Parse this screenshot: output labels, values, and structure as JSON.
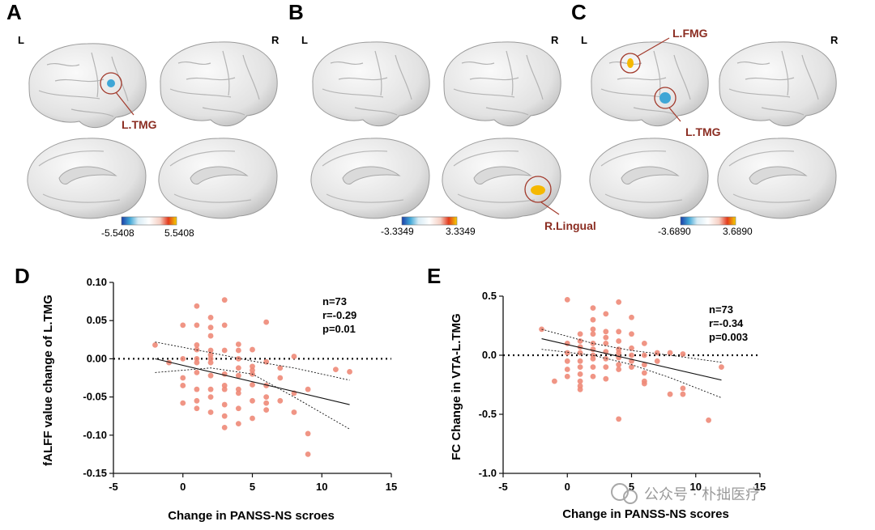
{
  "brain_panels": [
    {
      "letter": "A",
      "left": "L",
      "right": "R",
      "regions": [
        "L.TMG"
      ],
      "colorbar": {
        "min": "-5.5408",
        "max": "5.5408"
      }
    },
    {
      "letter": "B",
      "left": "L",
      "right": "R",
      "regions": [
        "R.Lingual"
      ],
      "colorbar": {
        "min": "-3.3349",
        "max": "3.3349"
      }
    },
    {
      "letter": "C",
      "left": "L",
      "right": "R",
      "regions": [
        "L.FMG",
        "L.TMG"
      ],
      "colorbar": {
        "min": "-3.6890",
        "max": "3.6890"
      }
    }
  ],
  "colors": {
    "point": "#ee8a78",
    "region_ring": "#a23a2c",
    "region_text": "#8b2d22",
    "hot": "#f5b800",
    "cool": "#3fa6d6"
  },
  "chart_data": [
    {
      "letter": "D",
      "type": "scatter",
      "xlabel": "Change in PANSS-NS scroes",
      "ylabel": "fALFF value change of L.TMG",
      "xlim": [
        -5,
        15
      ],
      "ylim": [
        -0.15,
        0.1
      ],
      "xticks": [
        "-5",
        "0",
        "5",
        "10",
        "15"
      ],
      "yticks": [
        "0.10",
        "0.05",
        "0.00",
        "-0.05",
        "-0.10",
        "-0.15"
      ],
      "stats": [
        "n=73",
        "r=-0.29",
        "p=0.01"
      ],
      "reference_y": 0,
      "fit": {
        "x": [
          -2,
          12
        ],
        "y": [
          0.0,
          -0.06
        ]
      },
      "ci_upper": {
        "x": [
          -2,
          2,
          5,
          8,
          12
        ],
        "y": [
          0.022,
          0.008,
          -0.003,
          -0.012,
          -0.028
        ]
      },
      "ci_lower": {
        "x": [
          -2,
          2,
          5,
          8,
          12
        ],
        "y": [
          -0.018,
          -0.012,
          -0.02,
          -0.05,
          -0.092
        ]
      },
      "points": [
        [
          -2,
          0.018
        ],
        [
          -1,
          -0.005
        ],
        [
          0,
          0.044
        ],
        [
          0,
          0.0
        ],
        [
          0,
          -0.025
        ],
        [
          0,
          -0.035
        ],
        [
          0,
          -0.058
        ],
        [
          1,
          0.069
        ],
        [
          1,
          0.044
        ],
        [
          1,
          0.018
        ],
        [
          1,
          0.012
        ],
        [
          1,
          0.0
        ],
        [
          1,
          -0.005
        ],
        [
          1,
          -0.018
        ],
        [
          1,
          -0.04
        ],
        [
          1,
          -0.055
        ],
        [
          1,
          -0.065
        ],
        [
          2,
          0.054
        ],
        [
          2,
          0.041
        ],
        [
          2,
          0.03
        ],
        [
          2,
          0.011
        ],
        [
          2,
          0.005
        ],
        [
          2,
          0.0
        ],
        [
          2,
          -0.005
        ],
        [
          2,
          -0.022
        ],
        [
          2,
          -0.04
        ],
        [
          2,
          -0.05
        ],
        [
          2,
          -0.07
        ],
        [
          3,
          0.077
        ],
        [
          3,
          0.044
        ],
        [
          3,
          0.011
        ],
        [
          3,
          -0.02
        ],
        [
          3,
          -0.035
        ],
        [
          3,
          -0.04
        ],
        [
          3,
          -0.06
        ],
        [
          3,
          -0.075
        ],
        [
          3,
          -0.09
        ],
        [
          4,
          0.019
        ],
        [
          4,
          0.011
        ],
        [
          4,
          0.0
        ],
        [
          4,
          -0.012
        ],
        [
          4,
          -0.022
        ],
        [
          4,
          -0.04
        ],
        [
          4,
          -0.045
        ],
        [
          4,
          -0.065
        ],
        [
          4,
          -0.085
        ],
        [
          5,
          0.012
        ],
        [
          5,
          -0.01
        ],
        [
          5,
          -0.015
        ],
        [
          5,
          -0.02
        ],
        [
          5,
          -0.034
        ],
        [
          5,
          -0.055
        ],
        [
          5,
          -0.078
        ],
        [
          6,
          0.048
        ],
        [
          6,
          -0.004
        ],
        [
          6,
          -0.035
        ],
        [
          6,
          -0.05
        ],
        [
          6,
          -0.058
        ],
        [
          6,
          -0.067
        ],
        [
          7,
          -0.012
        ],
        [
          7,
          -0.025
        ],
        [
          7,
          -0.055
        ],
        [
          8,
          0.003
        ],
        [
          8,
          -0.045
        ],
        [
          8,
          -0.07
        ],
        [
          9,
          -0.04
        ],
        [
          9,
          -0.098
        ],
        [
          9,
          -0.125
        ],
        [
          11,
          -0.014
        ],
        [
          12,
          -0.017
        ]
      ]
    },
    {
      "letter": "E",
      "type": "scatter",
      "xlabel": "Change in PANSS-NS scores",
      "ylabel": "FC Change in VTA-L.TMG",
      "xlim": [
        -5,
        15
      ],
      "ylim": [
        -1.0,
        0.5
      ],
      "xticks": [
        "-5",
        "0",
        "5",
        "10",
        "15"
      ],
      "yticks": [
        "0.5",
        "0.0",
        "-0.5",
        "-1.0"
      ],
      "stats": [
        "n=73",
        "r=-0.34",
        "p=0.003"
      ],
      "reference_y": 0,
      "fit": {
        "x": [
          -2,
          12
        ],
        "y": [
          0.14,
          -0.21
        ]
      },
      "ci_upper": {
        "x": [
          -2,
          2,
          5,
          8,
          12
        ],
        "y": [
          0.22,
          0.1,
          0.04,
          0.0,
          -0.06
        ]
      },
      "ci_lower": {
        "x": [
          -2,
          2,
          5,
          8,
          12
        ],
        "y": [
          0.05,
          0.0,
          -0.08,
          -0.19,
          -0.36
        ]
      },
      "points": [
        [
          -2,
          0.22
        ],
        [
          -1,
          -0.22
        ],
        [
          0,
          0.47
        ],
        [
          0,
          0.1
        ],
        [
          0,
          0.02
        ],
        [
          0,
          -0.05
        ],
        [
          0,
          -0.12
        ],
        [
          0,
          -0.18
        ],
        [
          1,
          0.18
        ],
        [
          1,
          0.12
        ],
        [
          1,
          0.07
        ],
        [
          1,
          0.02
        ],
        [
          1,
          -0.05
        ],
        [
          1,
          -0.1
        ],
        [
          1,
          -0.16
        ],
        [
          1,
          -0.22
        ],
        [
          1,
          -0.26
        ],
        [
          1,
          -0.29
        ],
        [
          2,
          0.4
        ],
        [
          2,
          0.3
        ],
        [
          2,
          0.22
        ],
        [
          2,
          0.18
        ],
        [
          2,
          0.1
        ],
        [
          2,
          0.05
        ],
        [
          2,
          0.0
        ],
        [
          2,
          -0.03
        ],
        [
          2,
          -0.1
        ],
        [
          2,
          -0.18
        ],
        [
          3,
          0.35
        ],
        [
          3,
          0.2
        ],
        [
          3,
          0.15
        ],
        [
          3,
          0.1
        ],
        [
          3,
          0.03
        ],
        [
          3,
          -0.03
        ],
        [
          3,
          -0.1
        ],
        [
          3,
          -0.2
        ],
        [
          4,
          0.45
        ],
        [
          4,
          0.2
        ],
        [
          4,
          0.12
        ],
        [
          4,
          0.05
        ],
        [
          4,
          0.02
        ],
        [
          4,
          -0.02
        ],
        [
          4,
          -0.08
        ],
        [
          4,
          -0.12
        ],
        [
          4,
          -0.54
        ],
        [
          5,
          0.32
        ],
        [
          5,
          0.18
        ],
        [
          5,
          0.06
        ],
        [
          5,
          0.0
        ],
        [
          5,
          -0.05
        ],
        [
          5,
          -0.1
        ],
        [
          6,
          0.1
        ],
        [
          6,
          0.0
        ],
        [
          6,
          -0.08
        ],
        [
          6,
          -0.15
        ],
        [
          6,
          -0.22
        ],
        [
          6,
          -0.24
        ],
        [
          7,
          0.02
        ],
        [
          7,
          -0.05
        ],
        [
          8,
          0.02
        ],
        [
          8,
          -0.33
        ],
        [
          9,
          0.01
        ],
        [
          9,
          -0.28
        ],
        [
          9,
          -0.33
        ],
        [
          11,
          -0.55
        ],
        [
          12,
          -0.1
        ]
      ]
    }
  ],
  "watermark": "公众号 · 朴拙医疗"
}
